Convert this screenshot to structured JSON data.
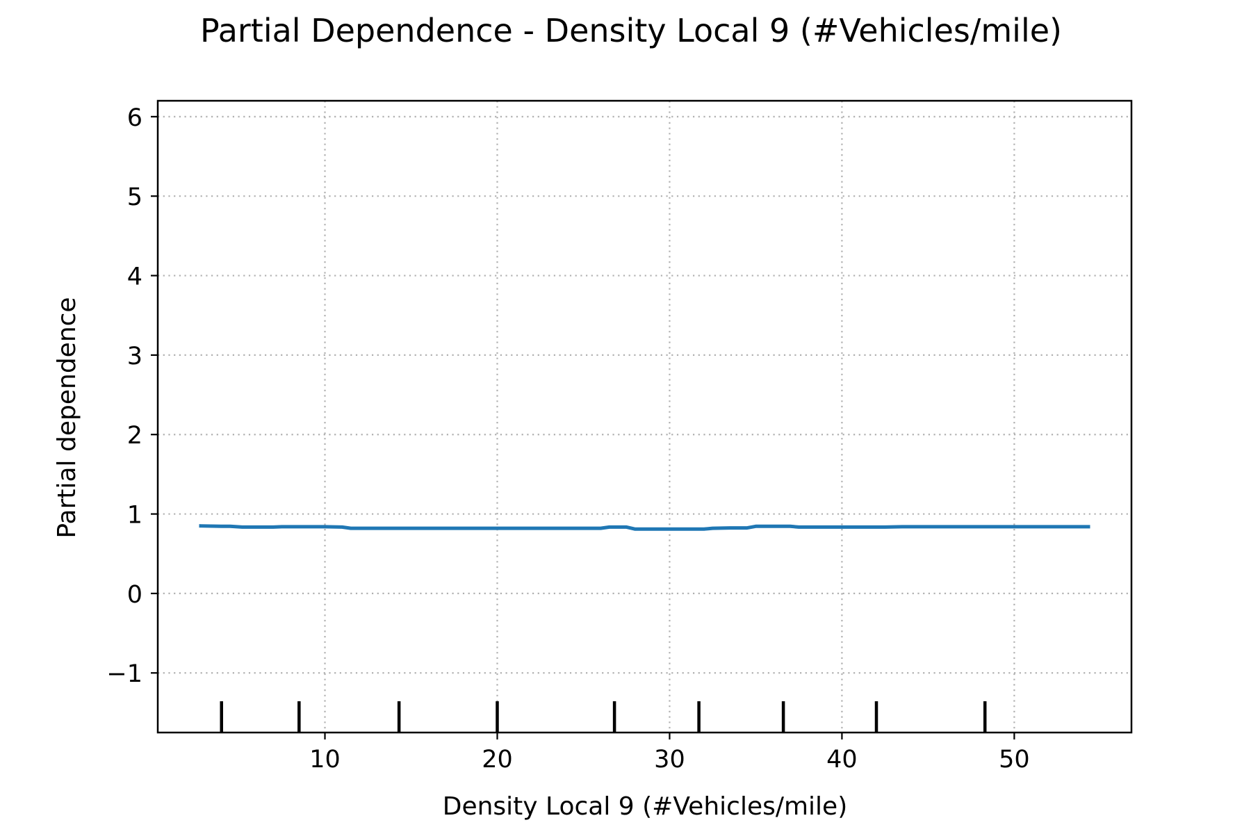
{
  "chart_data": {
    "type": "line",
    "title": "Partial Dependence - Density Local 9 (#Vehicles/mile)",
    "xlabel": "Density Local 9 (#Vehicles/mile)",
    "ylabel": "Partial dependence",
    "xlim": [
      0.3,
      56.8
    ],
    "ylim": [
      -1.75,
      6.2
    ],
    "xticks": [
      10,
      20,
      30,
      40,
      50
    ],
    "xtick_labels": [
      "10",
      "20",
      "30",
      "40",
      "50"
    ],
    "yticks": [
      -1,
      0,
      1,
      2,
      3,
      4,
      5,
      6
    ],
    "ytick_labels": [
      "−1",
      "0",
      "1",
      "2",
      "3",
      "4",
      "5",
      "6"
    ],
    "grid": true,
    "line_color": "#1f77b4",
    "series": [
      {
        "x": [
          2.8,
          4.0,
          4.5,
          5.2,
          6.0,
          7.0,
          7.5,
          8.5,
          10.0,
          11.0,
          11.5,
          12.5,
          14.0,
          16.0,
          18.0,
          20.0,
          22.0,
          24.0,
          25.5,
          26.0,
          26.5,
          27.5,
          28.0,
          28.5,
          29.5,
          30.5,
          31.5,
          32.0,
          32.5,
          33.5,
          34.5,
          35.0,
          36.0,
          37.0,
          37.5,
          39.0,
          41.0,
          42.0,
          42.5,
          43.5,
          44.5,
          46.0,
          48.0,
          50.0,
          52.0,
          54.3
        ],
        "y": [
          0.85,
          0.845,
          0.845,
          0.835,
          0.835,
          0.835,
          0.84,
          0.84,
          0.84,
          0.835,
          0.82,
          0.82,
          0.82,
          0.82,
          0.82,
          0.82,
          0.82,
          0.82,
          0.82,
          0.82,
          0.835,
          0.835,
          0.81,
          0.81,
          0.81,
          0.81,
          0.81,
          0.81,
          0.82,
          0.825,
          0.825,
          0.845,
          0.845,
          0.845,
          0.835,
          0.835,
          0.835,
          0.835,
          0.835,
          0.84,
          0.84,
          0.84,
          0.84,
          0.84,
          0.84,
          0.84
        ]
      }
    ],
    "rug_x": [
      4.0,
      8.5,
      14.3,
      20.0,
      26.8,
      31.7,
      36.6,
      42.0,
      48.3
    ]
  }
}
